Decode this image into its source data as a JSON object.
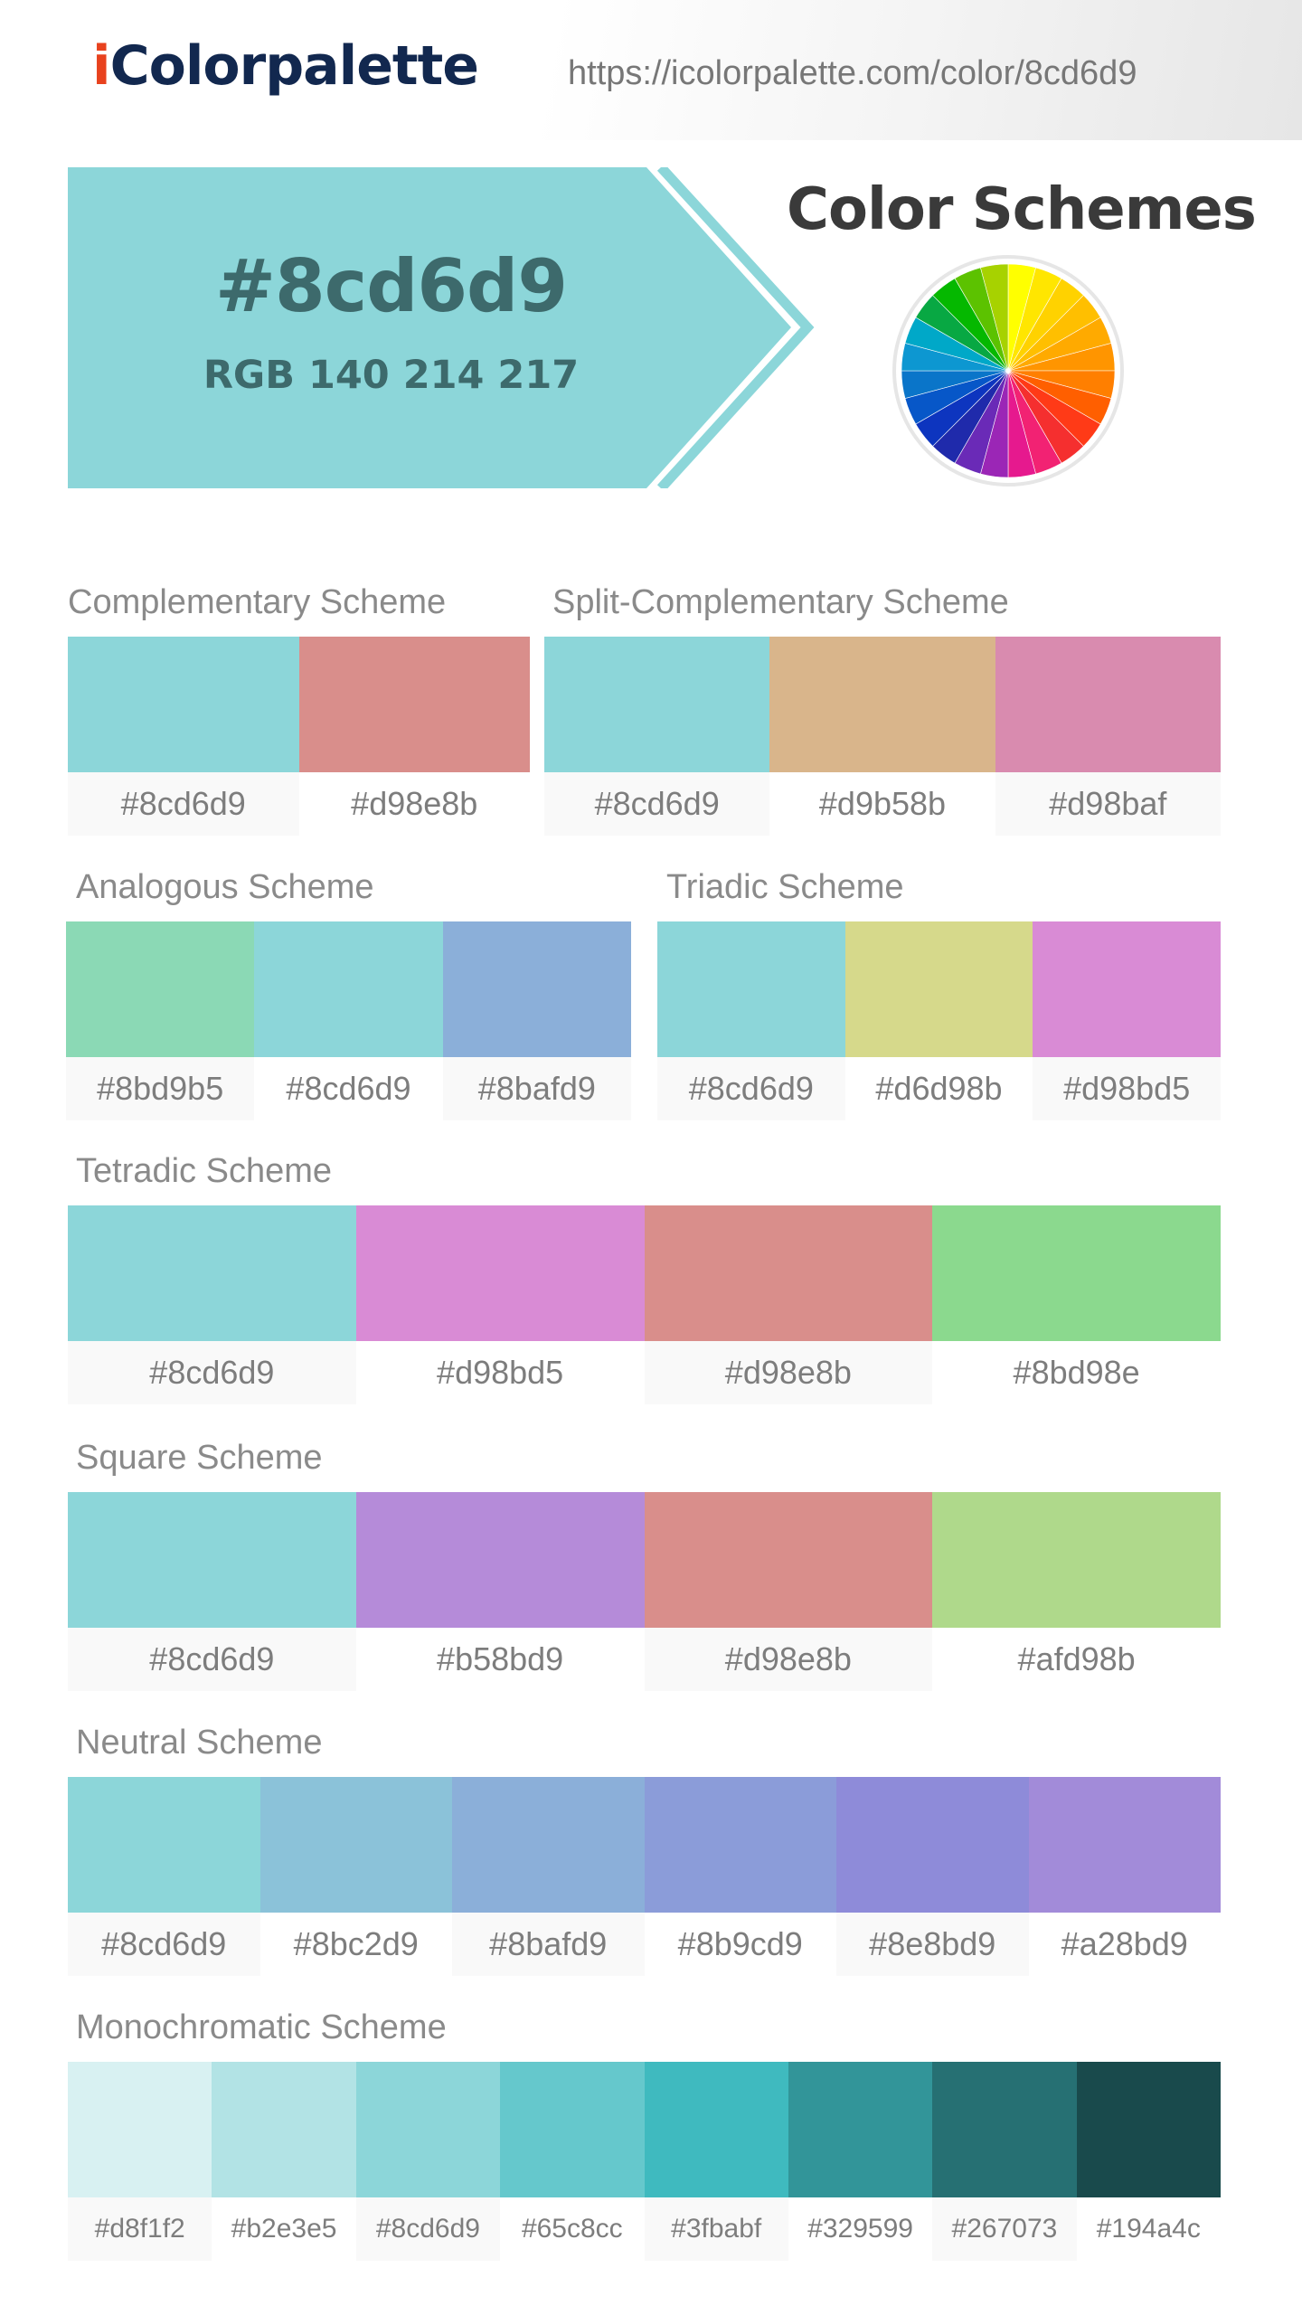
{
  "site": {
    "logo_i": "i",
    "logo_rest": "Colorpalette",
    "url": "https://icolorpalette.com/color/8cd6d9"
  },
  "main_color": {
    "hex": "#8cd6d9",
    "rgb": "RGB 140 214 217",
    "swatch_color": "#8cd6d9"
  },
  "schemes_heading": "Color Schemes",
  "color_wheel": {
    "icon": "color-wheel-icon",
    "segment_colors": [
      "#ffff00",
      "#ffe600",
      "#ffd200",
      "#ffbf00",
      "#ffaa00",
      "#ff9500",
      "#ff7f00",
      "#ff5f00",
      "#ff3a17",
      "#f52f2f",
      "#f22273",
      "#e6198e",
      "#9b26b6",
      "#6a2ab7",
      "#1f2aab",
      "#0d35bf",
      "#0757c8",
      "#0a75c9",
      "#0d97d1",
      "#00a8c8",
      "#08a843",
      "#05b800",
      "#5cc200",
      "#a7d200"
    ]
  },
  "schemes": [
    {
      "title": "Complementary Scheme",
      "colors": [
        "#8cd6d9",
        "#d98e8b"
      ],
      "labels": [
        "#8cd6d9",
        "#d98e8b"
      ]
    },
    {
      "title": "Split-Complementary Scheme",
      "colors": [
        "#8cd6d9",
        "#d9b58b",
        "#d98baf"
      ],
      "labels": [
        "#8cd6d9",
        "#d9b58b",
        "#d98baf"
      ]
    },
    {
      "title": "Analogous Scheme",
      "colors": [
        "#8bd9b5",
        "#8cd6d9",
        "#8bafd9"
      ],
      "labels": [
        "#8bd9b5",
        "#8cd6d9",
        "#8bafd9"
      ]
    },
    {
      "title": "Triadic Scheme",
      "colors": [
        "#8cd6d9",
        "#d6d98b",
        "#d98bd5"
      ],
      "labels": [
        "#8cd6d9",
        "#d6d98b",
        "#d98bd5"
      ]
    },
    {
      "title": "Tetradic Scheme",
      "colors": [
        "#8cd6d9",
        "#d98bd5",
        "#d98e8b",
        "#8bd98e"
      ],
      "labels": [
        "#8cd6d9",
        "#d98bd5",
        "#d98e8b",
        "#8bd98e"
      ]
    },
    {
      "title": "Square Scheme",
      "colors": [
        "#8cd6d9",
        "#b58bd9",
        "#d98e8b",
        "#afd98b"
      ],
      "labels": [
        "#8cd6d9",
        "#b58bd9",
        "#d98e8b",
        "#afd98b"
      ]
    },
    {
      "title": "Neutral Scheme",
      "colors": [
        "#8cd6d9",
        "#8bc2d9",
        "#8bafd9",
        "#8b9cd9",
        "#8e8bd9",
        "#a28bd9"
      ],
      "labels": [
        "#8cd6d9",
        "#8bc2d9",
        "#8bafd9",
        "#8b9cd9",
        "#8e8bd9",
        "#a28bd9"
      ]
    },
    {
      "title": "Monochromatic Scheme",
      "colors": [
        "#d8f1f2",
        "#b2e3e5",
        "#8cd6d9",
        "#65c8cc",
        "#3fbabf",
        "#329599",
        "#267073",
        "#194a4c"
      ],
      "labels": [
        "#d8f1f2",
        "#b2e3e5",
        "#8cd6d9",
        "#65c8cc",
        "#3fbabf",
        "#329599",
        "#267073",
        "#194a4c"
      ]
    }
  ]
}
